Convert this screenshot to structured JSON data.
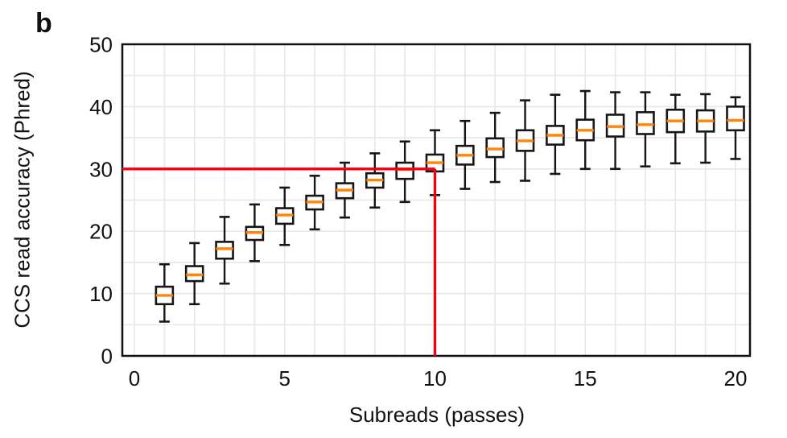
{
  "figure": {
    "panel_label": "b"
  },
  "chart_data": {
    "type": "boxplot",
    "title": "",
    "xlabel": "Subreads (passes)",
    "ylabel": "CCS read accuracy (Phred)",
    "x_ticks": [
      0,
      5,
      10,
      15,
      20
    ],
    "y_ticks": [
      0,
      10,
      20,
      30,
      40,
      50
    ],
    "xlim": [
      -0.4,
      20.5
    ],
    "ylim": [
      0,
      50
    ],
    "grid": {
      "on": true,
      "x_interval": 1,
      "y_interval": 5,
      "color": "#e8e8e8"
    },
    "legend": "none",
    "colors": {
      "box_stroke": "#161616",
      "median": "#ff850a",
      "reference_line": "#f50010",
      "background": "#ffffff",
      "spine": "#111111",
      "text": "#111111"
    },
    "reference_crosshair": {
      "y_value": 30,
      "x_value": 10,
      "description": "red line at Phred 30 from y-axis to 10 passes, then down to x-axis"
    },
    "boxes": [
      {
        "x": 1,
        "whisker_low": 5.5,
        "q1": 8.3,
        "median": 9.7,
        "q3": 11.1,
        "whisker_high": 14.7
      },
      {
        "x": 2,
        "whisker_low": 8.3,
        "q1": 12.0,
        "median": 13.0,
        "q3": 14.4,
        "whisker_high": 18.1
      },
      {
        "x": 3,
        "whisker_low": 11.6,
        "q1": 15.6,
        "median": 17.2,
        "q3": 18.3,
        "whisker_high": 22.3
      },
      {
        "x": 4,
        "whisker_low": 15.2,
        "q1": 18.6,
        "median": 19.8,
        "q3": 20.7,
        "whisker_high": 24.3
      },
      {
        "x": 5,
        "whisker_low": 17.8,
        "q1": 21.2,
        "median": 22.6,
        "q3": 23.7,
        "whisker_high": 27.0
      },
      {
        "x": 6,
        "whisker_low": 20.3,
        "q1": 23.5,
        "median": 24.7,
        "q3": 25.7,
        "whisker_high": 28.9
      },
      {
        "x": 7,
        "whisker_low": 22.2,
        "q1": 25.3,
        "median": 26.6,
        "q3": 27.7,
        "whisker_high": 31.0
      },
      {
        "x": 8,
        "whisker_low": 23.8,
        "q1": 27.0,
        "median": 28.2,
        "q3": 29.3,
        "whisker_high": 32.5
      },
      {
        "x": 9,
        "whisker_low": 24.7,
        "q1": 28.4,
        "median": 29.9,
        "q3": 31.0,
        "whisker_high": 34.4
      },
      {
        "x": 10,
        "whisker_low": 25.8,
        "q1": 29.6,
        "median": 31.0,
        "q3": 32.3,
        "whisker_high": 36.2
      },
      {
        "x": 11,
        "whisker_low": 26.8,
        "q1": 30.7,
        "median": 32.2,
        "q3": 33.7,
        "whisker_high": 37.7
      },
      {
        "x": 12,
        "whisker_low": 27.9,
        "q1": 31.9,
        "median": 33.2,
        "q3": 34.9,
        "whisker_high": 39.0
      },
      {
        "x": 13,
        "whisker_low": 28.1,
        "q1": 32.9,
        "median": 34.5,
        "q3": 36.2,
        "whisker_high": 41.0
      },
      {
        "x": 14,
        "whisker_low": 29.2,
        "q1": 33.9,
        "median": 35.4,
        "q3": 36.9,
        "whisker_high": 41.9
      },
      {
        "x": 15,
        "whisker_low": 30.0,
        "q1": 34.6,
        "median": 36.2,
        "q3": 37.9,
        "whisker_high": 42.5
      },
      {
        "x": 16,
        "whisker_low": 30.0,
        "q1": 35.2,
        "median": 36.8,
        "q3": 38.7,
        "whisker_high": 42.3
      },
      {
        "x": 17,
        "whisker_low": 30.4,
        "q1": 35.6,
        "median": 37.1,
        "q3": 39.1,
        "whisker_high": 42.3
      },
      {
        "x": 18,
        "whisker_low": 30.9,
        "q1": 35.9,
        "median": 37.7,
        "q3": 39.5,
        "whisker_high": 41.9
      },
      {
        "x": 19,
        "whisker_low": 31.0,
        "q1": 36.0,
        "median": 37.7,
        "q3": 39.4,
        "whisker_high": 42.0
      },
      {
        "x": 20,
        "whisker_low": 31.6,
        "q1": 36.2,
        "median": 37.8,
        "q3": 40.0,
        "whisker_high": 41.5
      }
    ]
  }
}
